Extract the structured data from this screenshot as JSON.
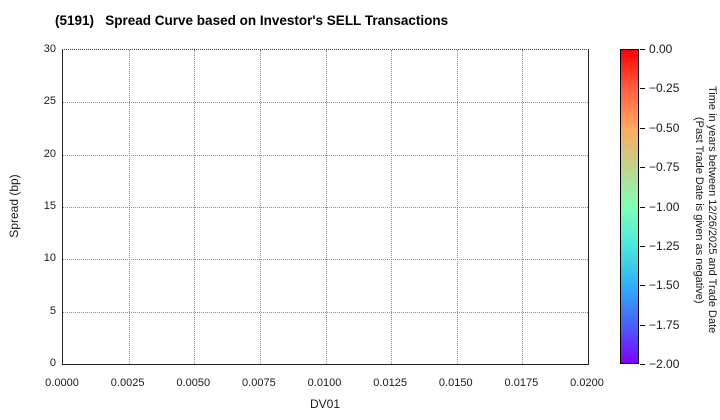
{
  "chart_data": {
    "type": "scatter",
    "title": "(5191)   Spread Curve based on Investor's SELL Transactions",
    "xlabel": "DV01",
    "ylabel": "Spread (bp)",
    "xlim": [
      0.0,
      0.02
    ],
    "ylim": [
      0,
      30
    ],
    "grid": true,
    "points": [],
    "x_ticks": {
      "values": [
        0.0,
        0.0025,
        0.005,
        0.0075,
        0.01,
        0.0125,
        0.015,
        0.0175,
        0.02
      ],
      "labels": [
        "0.0000",
        "0.0025",
        "0.0050",
        "0.0075",
        "0.0100",
        "0.0125",
        "0.0150",
        "0.0175",
        "0.0200"
      ]
    },
    "y_ticks": {
      "values": [
        0,
        5,
        10,
        15,
        20,
        25,
        30
      ],
      "labels": [
        "0",
        "5",
        "10",
        "15",
        "20",
        "25",
        "30"
      ]
    },
    "colorbar": {
      "title_line1": "Time in years between 12/26/2025 and Trade Date",
      "title_line2": "(Past Trade Date is given as negative)",
      "range": [
        0.0,
        -2.0
      ],
      "tick_labels": [
        "0.00",
        "−0.25",
        "−0.50",
        "−0.75",
        "−1.00",
        "−1.25",
        "−1.50",
        "−1.75",
        "−2.00"
      ],
      "gradient_top_to_bottom": [
        "#ff0000",
        "#ff6140",
        "#ffa95f",
        "#bfd48a",
        "#80ffb5",
        "#4ae8dd",
        "#2fb2f9",
        "#4763fb",
        "#7f00ff"
      ]
    },
    "colors": {
      "text": "#1a1a1a",
      "grid": "#8f8f8f",
      "axis": "#222222",
      "background": "#ffffff"
    }
  }
}
